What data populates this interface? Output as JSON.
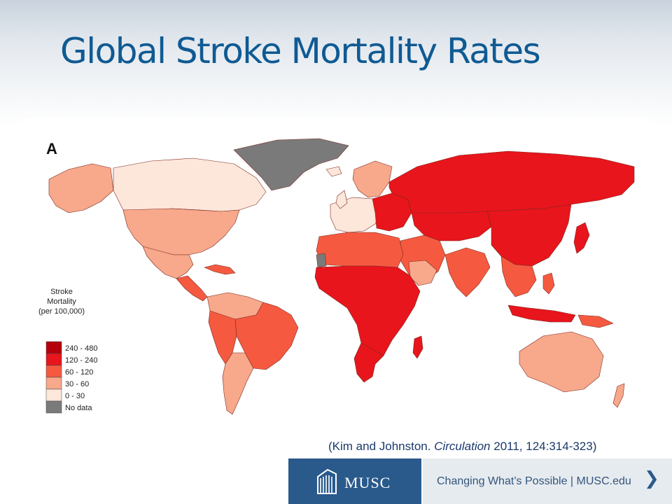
{
  "slide": {
    "title": "Global Stroke Mortality Rates"
  },
  "map": {
    "panel_label": "A",
    "legend": {
      "title_lines": [
        "Stroke",
        "Mortality",
        "(per 100,000)"
      ],
      "entries": [
        {
          "label": "240 - 480",
          "color": "#b5000c"
        },
        {
          "label": "120 - 240",
          "color": "#e8151c"
        },
        {
          "label": "60 - 120",
          "color": "#f55a40"
        },
        {
          "label": "30 - 60",
          "color": "#f8a88b"
        },
        {
          "label": "0 - 30",
          "color": "#fde6da"
        },
        {
          "label": "No data",
          "color": "#7a7a7a"
        }
      ]
    }
  },
  "citation": {
    "prefix": "(Kim and Johnston. ",
    "journal": "Circulation",
    "suffix": " 2011, 124:314-323)"
  },
  "footer": {
    "logo_text": "MUSC",
    "tagline": "Changing What’s Possible  |  MUSC.edu",
    "arrow_icon": "chevron-right-icon"
  }
}
